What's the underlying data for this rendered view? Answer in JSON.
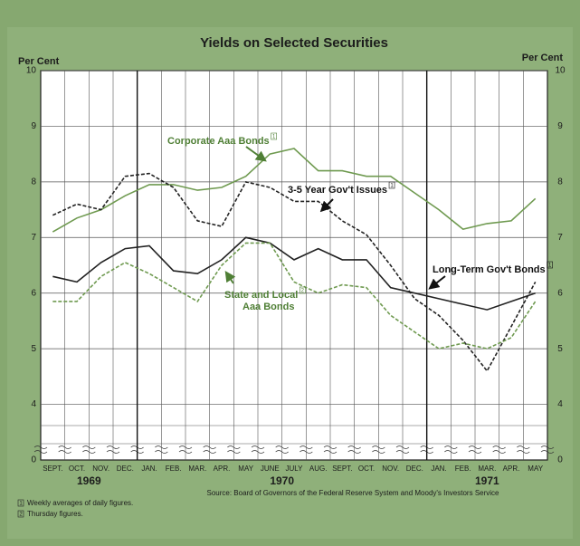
{
  "chart_data": {
    "type": "line",
    "title": "Yields on Selected Securities",
    "y_label": "Per Cent",
    "y2_label": "Per Cent",
    "categories": [
      "SEPT.",
      "OCT.",
      "NOV.",
      "DEC.",
      "JAN.",
      "FEB.",
      "MAR.",
      "APR.",
      "MAY",
      "JUNE",
      "JULY",
      "AUG.",
      "SEPT.",
      "OCT.",
      "NOV.",
      "DEC.",
      "JAN.",
      "FEB.",
      "MAR.",
      "APR.",
      "MAY"
    ],
    "years": [
      "1969",
      "1970",
      "1971"
    ],
    "ylim": [
      3,
      10
    ],
    "yticks": [
      4,
      5,
      6,
      7,
      8,
      9,
      10
    ],
    "axis_break_label": "0",
    "grid": true,
    "series": [
      {
        "name": "Corporate Aaa Bonds",
        "note": "1",
        "color": "#6f9a50",
        "dash": false,
        "values": [
          7.1,
          7.35,
          7.5,
          7.75,
          7.95,
          7.95,
          7.85,
          7.9,
          8.1,
          8.5,
          8.6,
          8.2,
          8.2,
          8.1,
          8.1,
          7.8,
          7.5,
          7.15,
          7.25,
          7.3,
          7.7
        ]
      },
      {
        "name": "3-5 Year Gov't Issues",
        "note": "1",
        "color": "#222222",
        "dash": true,
        "values": [
          7.4,
          7.6,
          7.5,
          8.1,
          8.15,
          7.9,
          7.3,
          7.2,
          8.0,
          7.9,
          7.65,
          7.65,
          7.3,
          7.05,
          6.5,
          5.9,
          5.6,
          5.15,
          4.6,
          5.4,
          6.2
        ]
      },
      {
        "name": "Long-Term Gov't Bonds",
        "note": "1",
        "color": "#222222",
        "dash": false,
        "values": [
          6.3,
          6.2,
          6.55,
          6.8,
          6.85,
          6.4,
          6.35,
          6.6,
          7.0,
          6.9,
          6.6,
          6.8,
          6.6,
          6.6,
          6.1,
          6.0,
          5.9,
          5.8,
          5.7,
          5.85,
          6.0
        ]
      },
      {
        "name": "State and Local Aaa Bonds",
        "label_lines": [
          "State and Local",
          "Aaa Bonds"
        ],
        "note": "2",
        "color": "#6f9a50",
        "dash": true,
        "values": [
          5.85,
          5.85,
          6.3,
          6.55,
          6.35,
          6.1,
          5.85,
          6.5,
          6.9,
          6.9,
          6.2,
          6.0,
          6.15,
          6.1,
          5.6,
          5.3,
          5.0,
          5.1,
          5.0,
          5.2,
          5.85
        ]
      }
    ],
    "source": "Source: Board of Governors of the Federal Reserve System and Moody's Investors Service",
    "footnotes": [
      {
        "mark": "1",
        "text": "Weekly averages of daily figures."
      },
      {
        "mark": "2",
        "text": "Thursday figures."
      }
    ]
  }
}
